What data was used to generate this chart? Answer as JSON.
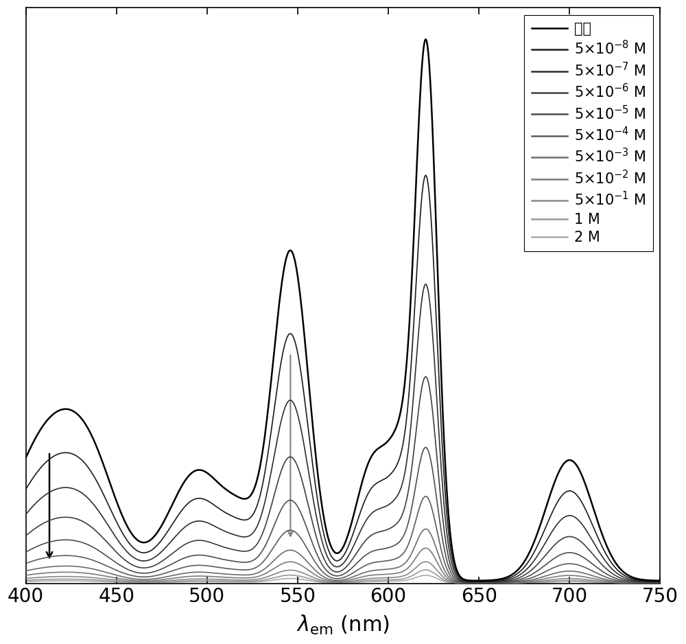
{
  "xlabel": "$\\lambda_{\\mathrm{em}}$ (nm)",
  "xlim": [
    400,
    750
  ],
  "xticks": [
    400,
    450,
    500,
    550,
    600,
    650,
    700,
    750
  ],
  "legend_labels_formatted": [
    "空白",
    "5×10$^{-8}$ M",
    "5×10$^{-7}$ M",
    "5×10$^{-6}$ M",
    "5×10$^{-5}$ M",
    "5×10$^{-4}$ M",
    "5×10$^{-3}$ M",
    "5×10$^{-2}$ M",
    "5×10$^{-1}$ M",
    "1 M",
    "2 M"
  ],
  "line_colors": [
    "#000000",
    "#1a1a1a",
    "#2e2e2e",
    "#3d3d3d",
    "#4d4d4d",
    "#5c5c5c",
    "#6b6b6b",
    "#7a7a7a",
    "#898989",
    "#999999",
    "#aaaaaa"
  ],
  "background_color": "#ffffff",
  "fig_width": 10.0,
  "fig_height": 9.38,
  "dpi": 100,
  "ylim": [
    0,
    1.05
  ],
  "xlabel_fontsize": 22,
  "tick_labelsize": 20,
  "legend_fontsize": 15
}
